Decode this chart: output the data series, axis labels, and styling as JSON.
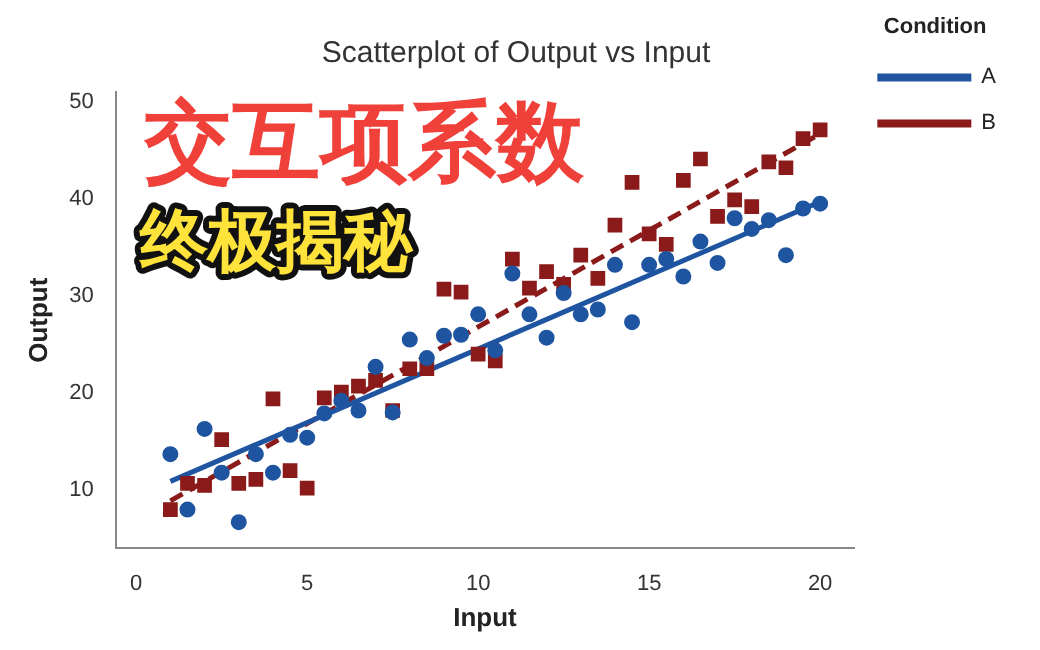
{
  "chart_data": {
    "type": "scatter",
    "title": "Scatterplot of Output vs Input",
    "xlabel": "Input",
    "ylabel": "Output",
    "legend_title": "Condition",
    "legend": "top right",
    "grid": false,
    "xlim": [
      -0.6,
      21
    ],
    "xticks": [
      0,
      5,
      10,
      15,
      20
    ],
    "ylim": [
      4,
      51
    ],
    "yticks": [
      10,
      20,
      30,
      40,
      50
    ],
    "annotations": [
      "交互项系数",
      "终极揭秘"
    ],
    "series": [
      {
        "name": "A",
        "color": "#1f55a0",
        "marker": "circle",
        "x": [
          1,
          1.5,
          2,
          2.5,
          3,
          3.5,
          4,
          4.5,
          5,
          5.5,
          6,
          6.5,
          7,
          7.5,
          8,
          8.5,
          9,
          9.5,
          10,
          10.5,
          11,
          11.5,
          12,
          12.5,
          13,
          13.5,
          14,
          14.5,
          15,
          15.5,
          16,
          16.5,
          17,
          17.5,
          18,
          18.5,
          19,
          19.5,
          20
        ],
        "values": [
          13.7,
          8.0,
          16.3,
          11.8,
          6.7,
          13.7,
          11.8,
          15.7,
          15.4,
          17.9,
          19.2,
          18.2,
          22.7,
          18.0,
          25.5,
          23.6,
          25.9,
          26.0,
          28.1,
          24.4,
          32.3,
          28.1,
          25.7,
          30.3,
          28.1,
          28.6,
          33.2,
          27.3,
          33.2,
          33.8,
          32.0,
          35.6,
          33.4,
          38.0,
          36.9,
          37.8,
          34.2,
          39.0,
          39.5
        ]
      },
      {
        "name": "B",
        "color": "#8b1a1a",
        "marker": "square",
        "x": [
          1,
          1.5,
          2,
          2.5,
          3,
          3.5,
          4,
          4.5,
          5,
          5.5,
          6,
          6.5,
          7,
          7.5,
          8,
          8.5,
          9,
          9.5,
          10,
          10.5,
          11,
          11.5,
          12,
          12.5,
          13,
          13.5,
          14,
          14.5,
          15,
          15.5,
          16,
          16.5,
          17,
          17.5,
          18,
          18.5,
          19,
          19.5,
          20
        ],
        "values": [
          8.0,
          10.7,
          10.5,
          15.2,
          10.7,
          11.1,
          19.4,
          12.0,
          10.2,
          19.5,
          20.1,
          20.7,
          21.3,
          18.2,
          22.5,
          22.5,
          30.7,
          30.4,
          24.0,
          23.3,
          33.8,
          30.8,
          32.5,
          31.2,
          34.2,
          31.8,
          37.3,
          41.7,
          36.4,
          35.3,
          41.9,
          44.1,
          38.2,
          39.9,
          39.2,
          43.8,
          43.2,
          46.2,
          47.1
        ]
      },
      {
        "type": "line",
        "color": "#1f55a0",
        "line_style": "solid",
        "marker": "none",
        "x": [
          1,
          20
        ],
        "values": [
          10.9,
          39.7
        ]
      },
      {
        "type": "line",
        "color": "#8b1a1a",
        "line_style": "dashed",
        "marker": "none",
        "x": [
          1,
          20
        ],
        "values": [
          8.9,
          46.7
        ]
      }
    ]
  }
}
